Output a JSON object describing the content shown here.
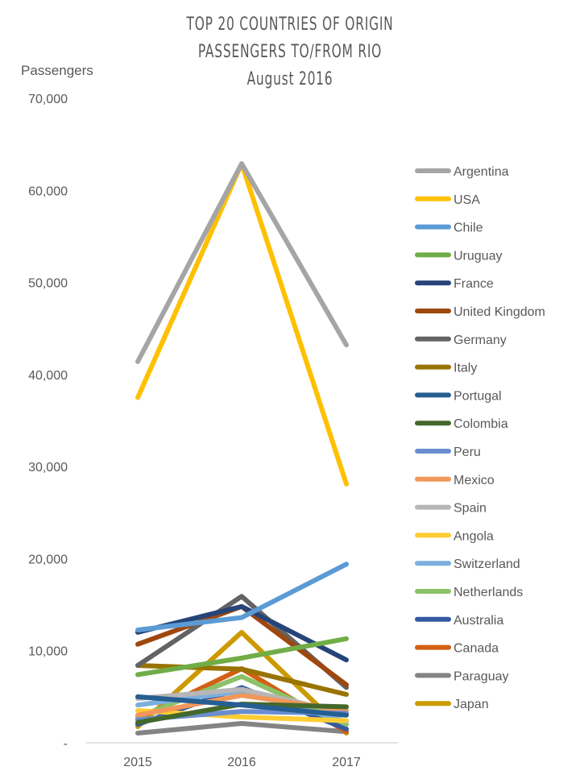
{
  "chart_data": {
    "type": "line",
    "title": [
      "TOP 20 COUNTRIES OF ORIGIN",
      "PASSENGERS TO/FROM RIO",
      "August 2016"
    ],
    "ylabel": "Passengers",
    "xlabel": "",
    "categories": [
      "2015",
      "2016",
      "2017"
    ],
    "ylim": [
      0,
      70000
    ],
    "yticks": [
      0,
      10000,
      20000,
      30000,
      40000,
      50000,
      60000,
      70000
    ],
    "ytick_labels": [
      "-",
      "10,000",
      "20,000",
      "30,000",
      "40,000",
      "50,000",
      "60,000",
      "70,000"
    ],
    "legend_position": "right",
    "grid": false,
    "series": [
      {
        "name": "Argentina",
        "color": "#A5A5A5",
        "values": [
          41400,
          62900,
          43200
        ]
      },
      {
        "name": "USA",
        "color": "#FFC000",
        "values": [
          37500,
          62900,
          28100
        ]
      },
      {
        "name": "Chile",
        "color": "#5B9BD5",
        "values": [
          12250,
          13600,
          19400
        ]
      },
      {
        "name": "Uruguay",
        "color": "#70AD47",
        "values": [
          7400,
          9200,
          11300
        ]
      },
      {
        "name": "France",
        "color": "#264478",
        "values": [
          12000,
          14800,
          9000
        ]
      },
      {
        "name": "United Kingdom",
        "color": "#9E480E",
        "values": [
          10700,
          14800,
          6300
        ]
      },
      {
        "name": "Germany",
        "color": "#636363",
        "values": [
          8400,
          15900,
          6000
        ]
      },
      {
        "name": "Italy",
        "color": "#997300",
        "values": [
          8400,
          8000,
          5250
        ]
      },
      {
        "name": "Portugal",
        "color": "#255E91",
        "values": [
          5000,
          4100,
          3000
        ]
      },
      {
        "name": "Colombia",
        "color": "#43682B",
        "values": [
          2200,
          4200,
          3900
        ]
      },
      {
        "name": "Peru",
        "color": "#698ED0",
        "values": [
          2500,
          3400,
          3200
        ]
      },
      {
        "name": "Mexico",
        "color": "#F1975A",
        "values": [
          3000,
          5150,
          3500
        ]
      },
      {
        "name": "Spain",
        "color": "#B7B7B7",
        "values": [
          4800,
          5800,
          3200
        ]
      },
      {
        "name": "Angola",
        "color": "#FFCD33",
        "values": [
          3500,
          2800,
          2400
        ]
      },
      {
        "name": "Switzerland",
        "color": "#7CAFDD",
        "values": [
          4100,
          5600,
          2300
        ]
      },
      {
        "name": "Netherlands",
        "color": "#8CC168",
        "values": [
          2800,
          7200,
          2000
        ]
      },
      {
        "name": "Australia",
        "color": "#335AA1",
        "values": [
          2000,
          6000,
          1500
        ]
      },
      {
        "name": "Canada",
        "color": "#D26012",
        "values": [
          2600,
          8050,
          1200
        ]
      },
      {
        "name": "Paraguay",
        "color": "#848484",
        "values": [
          1050,
          2100,
          1200
        ]
      },
      {
        "name": "Japan",
        "color": "#CC9A00",
        "values": [
          1750,
          12000,
          1050
        ]
      }
    ]
  }
}
